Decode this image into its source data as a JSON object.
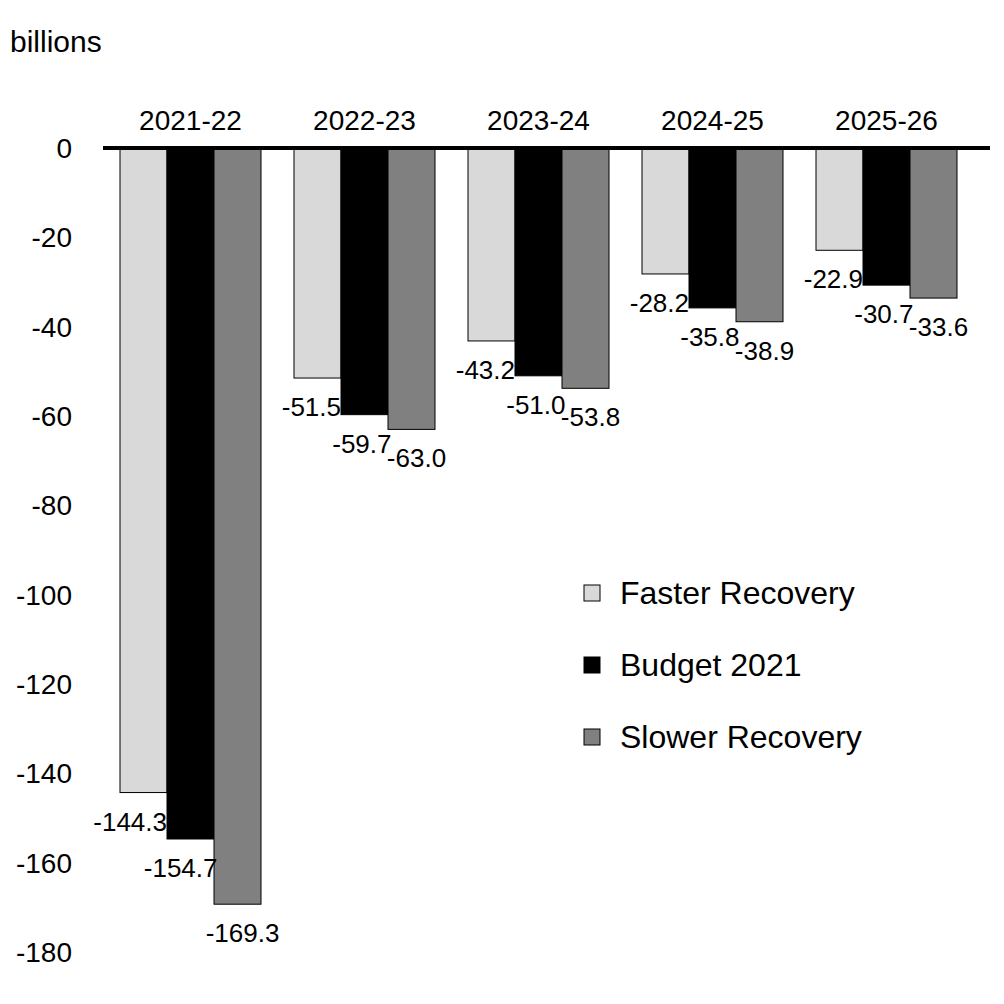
{
  "chart_data": {
    "type": "bar",
    "y_label": "billions",
    "categories": [
      "2021-22",
      "2022-23",
      "2023-24",
      "2024-25",
      "2025-26"
    ],
    "series": [
      {
        "name": "Faster Recovery",
        "color": "#d9d9d9",
        "values": [
          -144.3,
          -51.5,
          -43.2,
          -28.2,
          -22.9
        ],
        "value_labels": [
          "-144.3",
          "-51.5",
          "-43.2",
          "-28.2",
          "-22.9"
        ]
      },
      {
        "name": "Budget 2021",
        "color": "#000000",
        "values": [
          -154.7,
          -59.7,
          -51.0,
          -35.8,
          -30.7
        ],
        "value_labels": [
          "-154.7",
          "-59.7",
          "-51.0",
          "-35.8",
          "-30.7"
        ]
      },
      {
        "name": "Slower Recovery",
        "color": "#808080",
        "values": [
          -169.3,
          -63.0,
          -53.8,
          -38.9,
          -33.6
        ],
        "value_labels": [
          "-169.3",
          "-63.0",
          "-53.8",
          "-38.9",
          "-33.6"
        ]
      }
    ],
    "ylim": [
      -180,
      0
    ],
    "yticks": [
      0,
      -20,
      -40,
      -60,
      -80,
      -100,
      -120,
      -140,
      -160,
      -180
    ],
    "grid": false,
    "legend": "right",
    "data_labels": true
  }
}
